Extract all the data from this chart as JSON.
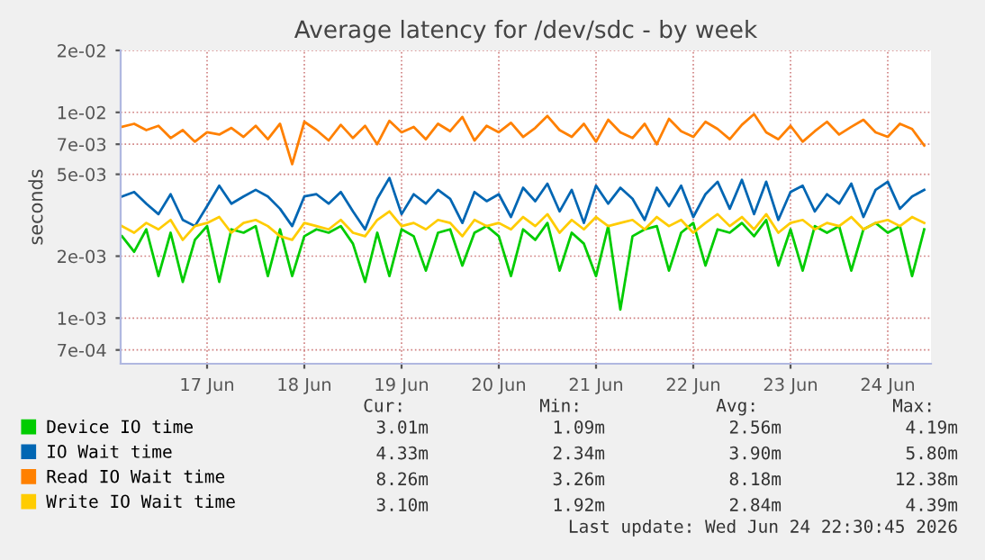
{
  "chart_data": {
    "type": "line",
    "title": "Average latency for /dev/sdc - by week",
    "ylabel": "seconds",
    "log": "y",
    "x": [
      "2026-06-16T15:00",
      "2026-06-16T18:00",
      "2026-06-16T21:00",
      "2026-06-17T00:00",
      "2026-06-17T03:00",
      "2026-06-17T06:00",
      "2026-06-17T09:00",
      "2026-06-17T12:00",
      "2026-06-17T15:00",
      "2026-06-17T18:00",
      "2026-06-17T21:00",
      "2026-06-18T00:00",
      "2026-06-18T03:00",
      "2026-06-18T06:00",
      "2026-06-18T09:00",
      "2026-06-18T12:00",
      "2026-06-18T15:00",
      "2026-06-18T18:00",
      "2026-06-18T21:00",
      "2026-06-19T00:00",
      "2026-06-19T03:00",
      "2026-06-19T06:00",
      "2026-06-19T09:00",
      "2026-06-19T12:00",
      "2026-06-19T15:00",
      "2026-06-19T18:00",
      "2026-06-19T21:00",
      "2026-06-20T00:00",
      "2026-06-20T03:00",
      "2026-06-20T06:00",
      "2026-06-20T09:00",
      "2026-06-20T12:00",
      "2026-06-20T15:00",
      "2026-06-20T18:00",
      "2026-06-20T21:00",
      "2026-06-21T00:00",
      "2026-06-21T03:00",
      "2026-06-21T06:00",
      "2026-06-21T09:00",
      "2026-06-21T12:00",
      "2026-06-21T15:00",
      "2026-06-21T18:00",
      "2026-06-21T21:00",
      "2026-06-22T00:00",
      "2026-06-22T03:00",
      "2026-06-22T06:00",
      "2026-06-22T09:00",
      "2026-06-22T12:00",
      "2026-06-22T15:00",
      "2026-06-22T18:00",
      "2026-06-22T21:00",
      "2026-06-23T00:00",
      "2026-06-23T03:00",
      "2026-06-23T06:00",
      "2026-06-23T09:00",
      "2026-06-23T12:00",
      "2026-06-23T15:00",
      "2026-06-23T18:00",
      "2026-06-23T21:00",
      "2026-06-24T00:00",
      "2026-06-24T03:00",
      "2026-06-24T06:00",
      "2026-06-24T09:00",
      "2026-06-24T12:00",
      "2026-06-24T15:00",
      "2026-06-24T18:00",
      "2026-06-24T21:00"
    ],
    "series": [
      {
        "name": "Device IO time",
        "color": "#00cc00",
        "values": [
          0.0025,
          0.0021,
          0.0027,
          0.0016,
          0.0026,
          0.0015,
          0.0024,
          0.0028,
          0.0015,
          0.0027,
          0.0026,
          0.0028,
          0.0016,
          0.0027,
          0.0016,
          0.0025,
          0.0027,
          0.0026,
          0.0028,
          0.0023,
          0.0015,
          0.0026,
          0.0016,
          0.0027,
          0.0025,
          0.0017,
          0.0026,
          0.0027,
          0.0018,
          0.0026,
          0.0028,
          0.0025,
          0.0016,
          0.0027,
          0.0024,
          0.0029,
          0.0017,
          0.0026,
          0.0023,
          0.0016,
          0.0028,
          0.0011,
          0.0025,
          0.0027,
          0.0028,
          0.0017,
          0.0026,
          0.0029,
          0.0018,
          0.0027,
          0.0026,
          0.0029,
          0.0025,
          0.003,
          0.0018,
          0.0027,
          0.0017,
          0.0028,
          0.0026,
          0.0028,
          0.0017,
          0.0027,
          0.0029,
          0.0026,
          0.0028,
          0.0016,
          0.0027
        ]
      },
      {
        "name": "IO Wait time",
        "color": "#0066b3",
        "values": [
          0.0039,
          0.0041,
          0.0036,
          0.0032,
          0.004,
          0.003,
          0.0028,
          0.0035,
          0.0044,
          0.0036,
          0.0039,
          0.0042,
          0.0039,
          0.0034,
          0.0028,
          0.0039,
          0.004,
          0.0036,
          0.0041,
          0.0033,
          0.0027,
          0.0038,
          0.0048,
          0.0032,
          0.004,
          0.0036,
          0.0042,
          0.0038,
          0.0029,
          0.0041,
          0.0037,
          0.004,
          0.0031,
          0.0043,
          0.0037,
          0.0045,
          0.0033,
          0.0042,
          0.0029,
          0.0044,
          0.0036,
          0.0043,
          0.0038,
          0.003,
          0.0043,
          0.0035,
          0.0044,
          0.0031,
          0.004,
          0.0046,
          0.0034,
          0.0047,
          0.0032,
          0.0046,
          0.003,
          0.0041,
          0.0044,
          0.0033,
          0.004,
          0.0036,
          0.0045,
          0.0031,
          0.0042,
          0.0046,
          0.0034,
          0.0039,
          0.0042
        ]
      },
      {
        "name": "Read IO Wait time",
        "color": "#ff8000",
        "values": [
          0.0085,
          0.0088,
          0.0082,
          0.0086,
          0.0075,
          0.0082,
          0.0072,
          0.008,
          0.0078,
          0.0084,
          0.0076,
          0.0086,
          0.0074,
          0.0088,
          0.0056,
          0.009,
          0.0082,
          0.0073,
          0.0087,
          0.0075,
          0.0086,
          0.007,
          0.0091,
          0.008,
          0.0085,
          0.0074,
          0.0088,
          0.0081,
          0.0095,
          0.0073,
          0.0086,
          0.008,
          0.0089,
          0.0076,
          0.0084,
          0.0096,
          0.0082,
          0.0076,
          0.0088,
          0.0072,
          0.0092,
          0.008,
          0.0075,
          0.0088,
          0.007,
          0.0093,
          0.0081,
          0.0076,
          0.009,
          0.0083,
          0.0074,
          0.0087,
          0.0098,
          0.008,
          0.0074,
          0.0086,
          0.0072,
          0.0081,
          0.009,
          0.0078,
          0.0085,
          0.0092,
          0.008,
          0.0076,
          0.0088,
          0.0083,
          0.0069
        ]
      },
      {
        "name": "Write IO Wait time",
        "color": "#ffcc00",
        "values": [
          0.0028,
          0.0026,
          0.0029,
          0.0027,
          0.003,
          0.0024,
          0.0028,
          0.0029,
          0.0031,
          0.0026,
          0.0029,
          0.003,
          0.0028,
          0.0025,
          0.0024,
          0.0029,
          0.0028,
          0.0027,
          0.003,
          0.0026,
          0.0025,
          0.003,
          0.0033,
          0.0028,
          0.0029,
          0.0027,
          0.003,
          0.0029,
          0.0025,
          0.003,
          0.0028,
          0.0029,
          0.0027,
          0.0031,
          0.0028,
          0.0032,
          0.0026,
          0.003,
          0.0027,
          0.0031,
          0.0028,
          0.0029,
          0.003,
          0.0027,
          0.0031,
          0.0028,
          0.003,
          0.0026,
          0.0029,
          0.0032,
          0.0028,
          0.0031,
          0.0027,
          0.0032,
          0.0026,
          0.0029,
          0.003,
          0.0027,
          0.0029,
          0.0028,
          0.0031,
          0.0027,
          0.0029,
          0.003,
          0.0028,
          0.0031,
          0.0029
        ]
      }
    ],
    "xlim": [
      "2026-06-16T14:40",
      "2026-06-24T22:40"
    ],
    "xticks": [
      {
        "value": "2026-06-17T12:00",
        "label": "17 Jun"
      },
      {
        "value": "2026-06-18T12:00",
        "label": "18 Jun"
      },
      {
        "value": "2026-06-19T12:00",
        "label": "19 Jun"
      },
      {
        "value": "2026-06-20T12:00",
        "label": "20 Jun"
      },
      {
        "value": "2026-06-21T12:00",
        "label": "21 Jun"
      },
      {
        "value": "2026-06-22T12:00",
        "label": "22 Jun"
      },
      {
        "value": "2026-06-23T12:00",
        "label": "23 Jun"
      },
      {
        "value": "2026-06-24T12:00",
        "label": "24 Jun"
      }
    ],
    "ylim": [
      0.0006,
      0.02
    ],
    "yticks": [
      {
        "value": 0.02,
        "label": "2e-02"
      },
      {
        "value": 0.01,
        "label": "1e-02"
      },
      {
        "value": 0.007,
        "label": "7e-03"
      },
      {
        "value": 0.005,
        "label": "5e-03"
      },
      {
        "value": 0.002,
        "label": "2e-03"
      },
      {
        "value": 0.001,
        "label": "1e-03"
      },
      {
        "value": 0.0007,
        "label": "7e-04"
      }
    ],
    "grid": true,
    "legend": "bottom",
    "marker": "none",
    "line_style": "solid",
    "annotations": [
      "Cur:",
      "Min:",
      "Avg:",
      "Max:",
      "3.01m",
      "1.09m",
      "2.56m",
      "4.19m",
      "4.33m",
      "2.34m",
      "3.90m",
      "5.80m",
      "8.26m",
      "3.26m",
      "8.18m",
      "12.38m",
      "3.10m",
      "1.92m",
      "2.84m",
      "4.39m",
      "Last update: Wed Jun 24 22:30:45 2026"
    ]
  }
}
